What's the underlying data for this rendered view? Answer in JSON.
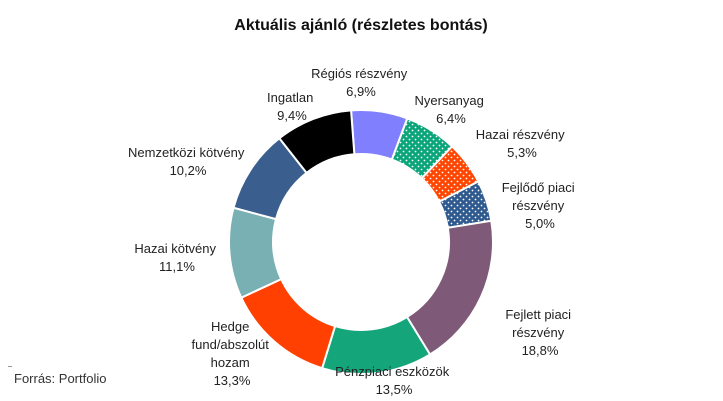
{
  "chart_data": {
    "type": "pie",
    "style": "donut",
    "title": "Aktuális ajánló (részletes bontás)",
    "source": "Forrás: Portfolio",
    "slices": [
      {
        "name": "Régiós részvény",
        "value_label": "6,9%",
        "value": 6.9,
        "color": "#8080ff",
        "pattern": "none"
      },
      {
        "name": "Nyersanyag",
        "value_label": "6,4%",
        "value": 6.4,
        "color": "#0aa57a",
        "pattern": "dots-white"
      },
      {
        "name": "Hazai részvény",
        "value_label": "5,3%",
        "value": 5.3,
        "color": "#ff4500",
        "pattern": "dots-white"
      },
      {
        "name": "Fejlődő piaci részvény",
        "value_label": "5,0%",
        "value": 5.0,
        "color": "#2f5a8f",
        "pattern": "dots-white"
      },
      {
        "name": "Fejlett piaci részvény",
        "value_label": "18,8%",
        "value": 18.8,
        "color": "#7e5a78",
        "pattern": "none"
      },
      {
        "name": "Pénzpiaci eszközök",
        "value_label": "13,5%",
        "value": 13.5,
        "color": "#14a57a",
        "pattern": "none"
      },
      {
        "name": "Hedge fund/abszolút hozam",
        "value_label": "13,3%",
        "value": 13.3,
        "color": "#ff4000",
        "pattern": "none"
      },
      {
        "name": "Hazai kötvény",
        "value_label": "11,1%",
        "value": 11.1,
        "color": "#79b0b3",
        "pattern": "none"
      },
      {
        "name": "Nemzetközi kötvény",
        "value_label": "10,2%",
        "value": 10.2,
        "color": "#3a5f8f",
        "pattern": "none"
      },
      {
        "name": "Ingatlan",
        "value_label": "9,4%",
        "value": 9.4,
        "color": "#000000",
        "pattern": "none"
      }
    ]
  },
  "labels": {
    "title": "Aktuális ajánló (részletes bontás)",
    "source": "Forrás: Portfolio",
    "regios": {
      "l1": "Régiós részvény",
      "l2": "6,9%"
    },
    "nyersanyag": {
      "l1": "Nyersanyag",
      "l2": "6,4%"
    },
    "hazai_reszveny": {
      "l1": "Hazai részvény",
      "l2": "5,3%"
    },
    "fejlodo": {
      "l1": "Fejlődő piaci",
      "l2": "részvény",
      "l3": "5,0%"
    },
    "fejlett": {
      "l1": "Fejlett piaci",
      "l2": "részvény",
      "l3": "18,8%"
    },
    "penzpiaci": {
      "l1": "Pénzpiaci eszközök",
      "l2": "13,5%"
    },
    "hedge": {
      "l1": "Hedge",
      "l2": "fund/abszolút",
      "l3": "hozam",
      "l4": "13,3%"
    },
    "hazai_kotveny": {
      "l1": "Hazai kötvény",
      "l2": "11,1%"
    },
    "nemzetkozi": {
      "l1": "Nemzetközi kötvény",
      "l2": "10,2%"
    },
    "ingatlan": {
      "l1": "Ingatlan",
      "l2": "9,4%"
    }
  }
}
